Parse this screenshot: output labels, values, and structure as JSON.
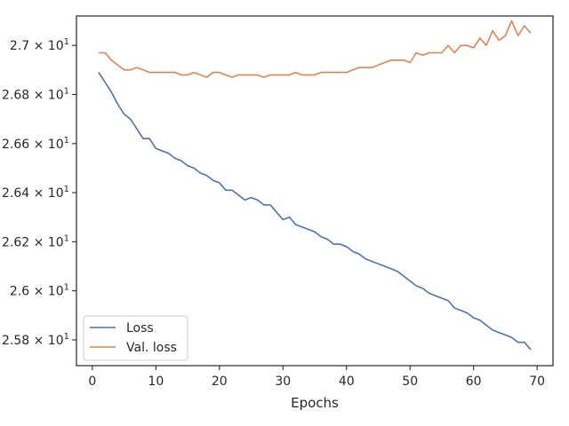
{
  "chart_data": {
    "type": "line",
    "title": "",
    "xlabel": "Epochs",
    "ylabel": "",
    "xlim": [
      -2.5,
      72.5
    ],
    "ylim": [
      25.695,
      27.12
    ],
    "grid": false,
    "legend_position": "lower-left",
    "x_ticks": [
      0,
      10,
      20,
      30,
      40,
      50,
      60,
      70
    ],
    "x_tick_labels": [
      "0",
      "10",
      "20",
      "30",
      "40",
      "50",
      "60",
      "70"
    ],
    "y_ticks": [
      25.8,
      26.0,
      26.2,
      26.4,
      26.6,
      26.8,
      27.0
    ],
    "y_tick_labels": [
      {
        "base": "2.58",
        "exp": "1"
      },
      {
        "base": "2.6",
        "exp": "1"
      },
      {
        "base": "2.62",
        "exp": "1"
      },
      {
        "base": "2.64",
        "exp": "1"
      },
      {
        "base": "2.66",
        "exp": "1"
      },
      {
        "base": "2.68",
        "exp": "1"
      },
      {
        "base": "2.7",
        "exp": "1"
      }
    ],
    "x": [
      1,
      2,
      3,
      4,
      5,
      6,
      7,
      8,
      9,
      10,
      11,
      12,
      13,
      14,
      15,
      16,
      17,
      18,
      19,
      20,
      21,
      22,
      23,
      24,
      25,
      26,
      27,
      28,
      29,
      30,
      31,
      32,
      33,
      34,
      35,
      36,
      37,
      38,
      39,
      40,
      41,
      42,
      43,
      44,
      45,
      46,
      47,
      48,
      49,
      50,
      51,
      52,
      53,
      54,
      55,
      56,
      57,
      58,
      59,
      60,
      61,
      62,
      63,
      64,
      65,
      66,
      67,
      68,
      69
    ],
    "series": [
      {
        "name": "Loss",
        "color": "#4c72b0",
        "values": [
          26.89,
          26.85,
          26.81,
          26.76,
          26.72,
          26.7,
          26.66,
          26.62,
          26.62,
          26.58,
          26.57,
          26.56,
          26.54,
          26.53,
          26.51,
          26.5,
          26.48,
          26.47,
          26.45,
          26.44,
          26.41,
          26.41,
          26.39,
          26.37,
          26.38,
          26.37,
          26.35,
          26.35,
          26.32,
          26.29,
          26.3,
          26.27,
          26.26,
          26.25,
          26.24,
          26.22,
          26.21,
          26.19,
          26.19,
          26.18,
          26.16,
          26.15,
          26.13,
          26.12,
          26.11,
          26.1,
          26.09,
          26.08,
          26.06,
          26.04,
          26.02,
          26.01,
          25.99,
          25.98,
          25.97,
          25.96,
          25.93,
          25.92,
          25.91,
          25.89,
          25.88,
          25.86,
          25.84,
          25.83,
          25.82,
          25.81,
          25.79,
          25.79,
          25.76
        ]
      },
      {
        "name": "Val. loss",
        "color": "#dd8452",
        "values": [
          26.97,
          26.97,
          26.94,
          26.92,
          26.9,
          26.9,
          26.91,
          26.9,
          26.89,
          26.89,
          26.89,
          26.89,
          26.89,
          26.88,
          26.88,
          26.89,
          26.88,
          26.87,
          26.89,
          26.89,
          26.88,
          26.87,
          26.88,
          26.88,
          26.88,
          26.88,
          26.87,
          26.88,
          26.88,
          26.88,
          26.88,
          26.89,
          26.88,
          26.88,
          26.88,
          26.89,
          26.89,
          26.89,
          26.89,
          26.89,
          26.9,
          26.91,
          26.91,
          26.91,
          26.92,
          26.93,
          26.94,
          26.94,
          26.94,
          26.93,
          26.97,
          26.96,
          26.97,
          26.97,
          26.97,
          27.0,
          26.97,
          27.0,
          27.0,
          26.99,
          27.03,
          27.0,
          27.06,
          27.02,
          27.04,
          27.1,
          27.04,
          27.08,
          27.05
        ]
      }
    ]
  }
}
